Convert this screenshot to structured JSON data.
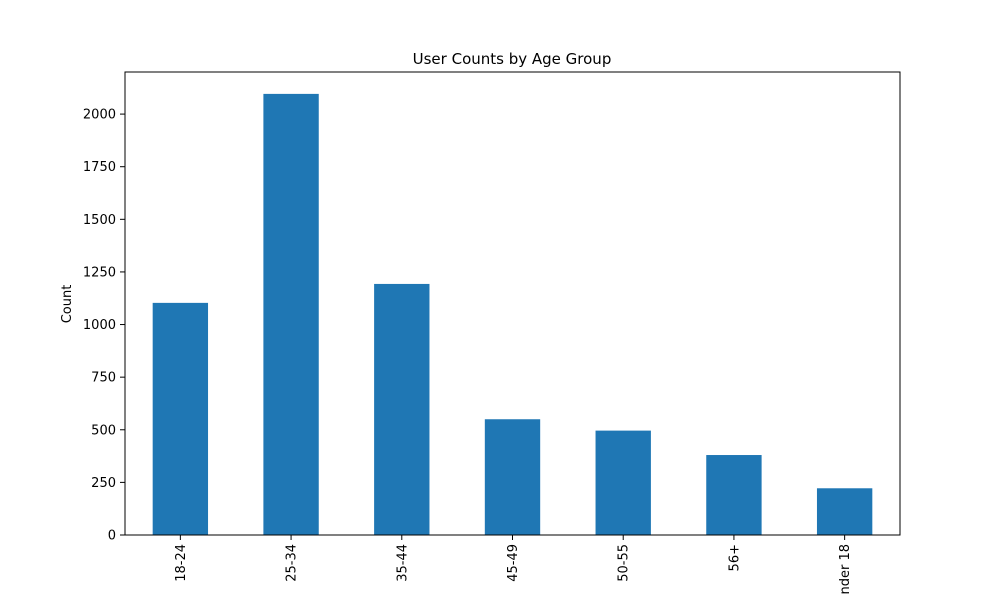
{
  "chart_data": {
    "type": "bar",
    "title": "User Counts by Age Group",
    "xlabel": "",
    "ylabel": "Count",
    "categories": [
      "18-24",
      "25-34",
      "35-44",
      "45-49",
      "50-55",
      "56+",
      "nder 18"
    ],
    "values": [
      1103,
      2096,
      1193,
      550,
      496,
      380,
      222
    ],
    "ylim": [
      0,
      2200
    ],
    "yticks": [
      0,
      250,
      500,
      750,
      1000,
      1250,
      1500,
      1750,
      2000
    ],
    "bar_color": "#1f77b4",
    "grid": false,
    "legend": "none"
  }
}
